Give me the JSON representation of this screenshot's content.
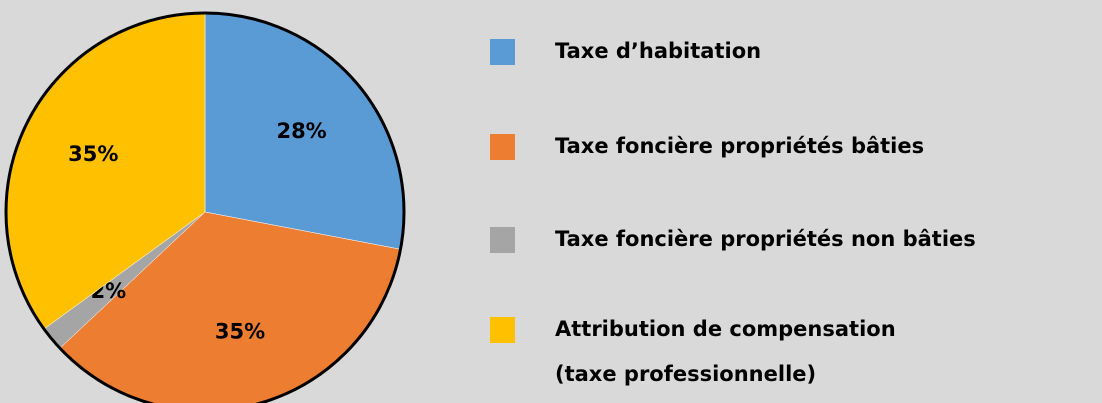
{
  "chart_data": {
    "type": "pie",
    "categories": [
      "Taxe d’habitation",
      "Taxe foncière propriétés bâties",
      "Taxe foncière propriétés non bâties",
      "Attribution de compensation\n(taxe professionnelle)"
    ],
    "values": [
      28,
      35,
      2,
      35
    ],
    "value_labels": [
      "28%",
      "35%",
      "2%",
      "35%"
    ],
    "colors": [
      "#5b9bd5",
      "#ed7d31",
      "#a5a5a5",
      "#ffc000"
    ]
  }
}
